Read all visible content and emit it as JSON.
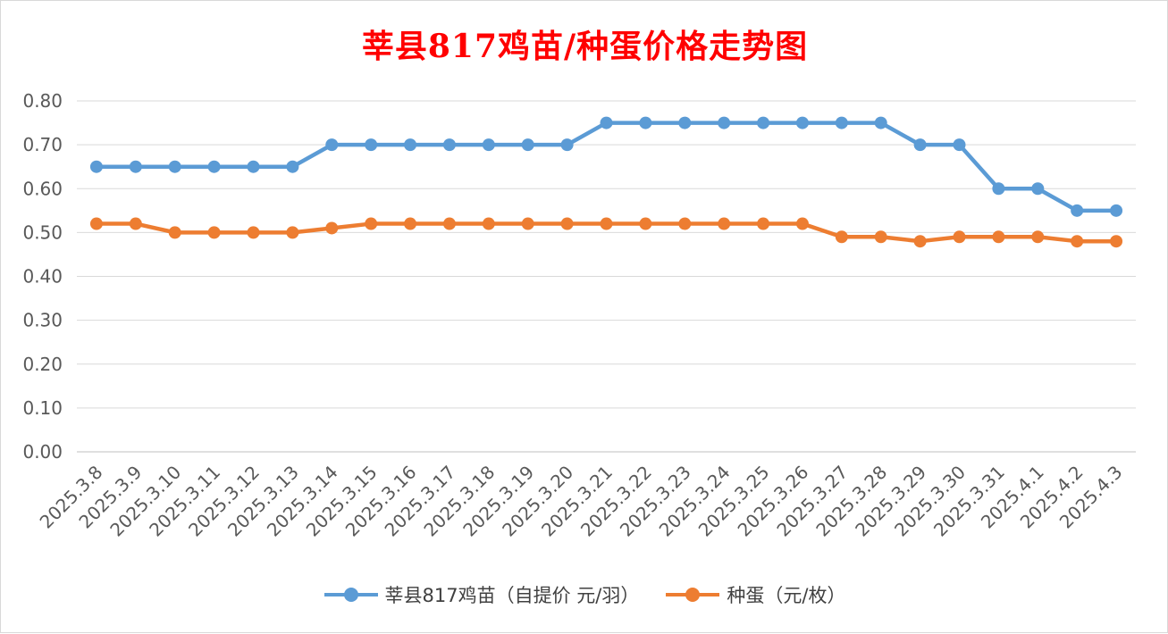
{
  "chart_data": {
    "type": "line",
    "title": "莘县817鸡苗/种蛋价格走势图",
    "xlabel": "",
    "ylabel": "",
    "ylim": [
      0,
      0.8
    ],
    "yticks": [
      "0.00",
      "0.10",
      "0.20",
      "0.30",
      "0.40",
      "0.50",
      "0.60",
      "0.70",
      "0.80"
    ],
    "grid": true,
    "legend_position": "bottom",
    "categories": [
      "2025.3.8",
      "2025.3.9",
      "2025.3.10",
      "2025.3.11",
      "2025.3.12",
      "2025.3.13",
      "2025.3.14",
      "2025.3.15",
      "2025.3.16",
      "2025.3.17",
      "2025.3.18",
      "2025.3.19",
      "2025.3.20",
      "2025.3.21",
      "2025.3.22",
      "2025.3.23",
      "2025.3.24",
      "2025.3.25",
      "2025.3.26",
      "2025.3.27",
      "2025.3.28",
      "2025.3.29",
      "2025.3.30",
      "2025.3.31",
      "2025.4.1",
      "2025.4.2",
      "2025.4.3"
    ],
    "series": [
      {
        "name": "莘县817鸡苗（自提价 元/羽）",
        "color": "#5b9bd5",
        "values": [
          0.65,
          0.65,
          0.65,
          0.65,
          0.65,
          0.65,
          0.7,
          0.7,
          0.7,
          0.7,
          0.7,
          0.7,
          0.7,
          0.75,
          0.75,
          0.75,
          0.75,
          0.75,
          0.75,
          0.75,
          0.75,
          0.7,
          0.7,
          0.6,
          0.6,
          0.55,
          0.55
        ]
      },
      {
        "name": "种蛋（元/枚）",
        "color": "#ed7d31",
        "values": [
          0.52,
          0.52,
          0.5,
          0.5,
          0.5,
          0.5,
          0.51,
          0.52,
          0.52,
          0.52,
          0.52,
          0.52,
          0.52,
          0.52,
          0.52,
          0.52,
          0.52,
          0.52,
          0.52,
          0.49,
          0.49,
          0.48,
          0.49,
          0.49,
          0.49,
          0.48,
          0.48
        ]
      }
    ]
  }
}
